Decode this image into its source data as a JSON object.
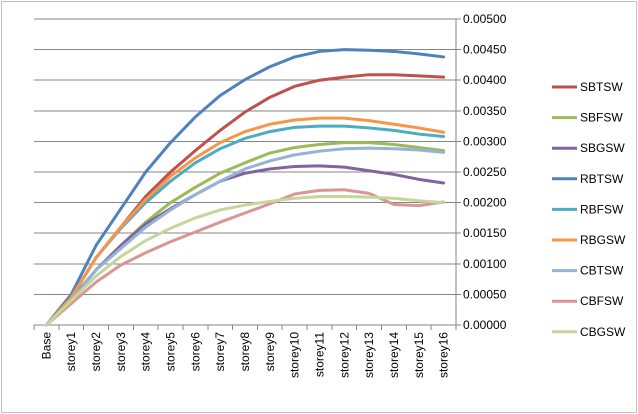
{
  "chart_data": {
    "type": "line",
    "title": "",
    "xlabel": "",
    "ylabel": "",
    "categories": [
      "Base",
      "storey1",
      "storey2",
      "storey3",
      "storey4",
      "storey5",
      "storey6",
      "storey7",
      "storey8",
      "storey9",
      "storey10",
      "storey11",
      "storey12",
      "storey13",
      "storey14",
      "storey15",
      "storey16"
    ],
    "ylim": [
      0,
      0.005
    ],
    "yticks": [
      "0.00000",
      "0.00050",
      "0.00100",
      "0.00150",
      "0.00200",
      "0.00250",
      "0.00300",
      "0.00350",
      "0.00400",
      "0.00450",
      "0.00500"
    ],
    "y_axis_position": "right",
    "grid": true,
    "legend": "right",
    "series": [
      {
        "name": "SBTSW",
        "color": "#c0504d",
        "values": [
          0,
          0.00045,
          0.0011,
          0.0016,
          0.0021,
          0.0025,
          0.00285,
          0.00318,
          0.00348,
          0.00372,
          0.0039,
          0.004,
          0.00405,
          0.00409,
          0.00409,
          0.00407,
          0.00405
        ]
      },
      {
        "name": "SBFSW",
        "color": "#9bbb59",
        "values": [
          0,
          0.00042,
          0.0009,
          0.0013,
          0.00168,
          0.002,
          0.00225,
          0.00248,
          0.00265,
          0.00281,
          0.0029,
          0.00295,
          0.00298,
          0.00298,
          0.00295,
          0.0029,
          0.00285
        ]
      },
      {
        "name": "SBGSW",
        "color": "#8064a2",
        "values": [
          0,
          0.00042,
          0.0009,
          0.0013,
          0.00165,
          0.0019,
          0.00213,
          0.00235,
          0.00248,
          0.00255,
          0.00259,
          0.0026,
          0.00258,
          0.00252,
          0.00246,
          0.00238,
          0.00232
        ]
      },
      {
        "name": "RBTSW",
        "color": "#4f81bd",
        "values": [
          0,
          0.0005,
          0.0013,
          0.0019,
          0.0025,
          0.00298,
          0.0034,
          0.00375,
          0.00401,
          0.00422,
          0.00438,
          0.00447,
          0.0045,
          0.00449,
          0.00447,
          0.00443,
          0.00438
        ]
      },
      {
        "name": "RBFSW",
        "color": "#4bacc6",
        "values": [
          0,
          0.00045,
          0.0011,
          0.00158,
          0.002,
          0.00235,
          0.00265,
          0.00288,
          0.00305,
          0.00316,
          0.00323,
          0.00325,
          0.00325,
          0.00322,
          0.00318,
          0.00312,
          0.00308
        ]
      },
      {
        "name": "RBGSW",
        "color": "#f79646",
        "values": [
          0,
          0.00045,
          0.0011,
          0.0016,
          0.00205,
          0.00243,
          0.00273,
          0.00298,
          0.00316,
          0.00328,
          0.00335,
          0.00338,
          0.00338,
          0.00334,
          0.00328,
          0.00322,
          0.00315
        ]
      },
      {
        "name": "CBTSW",
        "color": "#95b3d7",
        "values": [
          0,
          0.0004,
          0.0009,
          0.00125,
          0.0016,
          0.00188,
          0.00213,
          0.00235,
          0.00255,
          0.00268,
          0.00278,
          0.00284,
          0.00288,
          0.00289,
          0.00288,
          0.00286,
          0.00282
        ]
      },
      {
        "name": "CBFSW",
        "color": "#d99694",
        "values": [
          0,
          0.00035,
          0.0007,
          0.00098,
          0.00118,
          0.00136,
          0.00152,
          0.00168,
          0.00183,
          0.00198,
          0.00214,
          0.0022,
          0.00221,
          0.00215,
          0.00197,
          0.00195,
          0.00201
        ]
      },
      {
        "name": "CBGSW",
        "color": "#c3d69b",
        "values": [
          0,
          0.0004,
          0.0008,
          0.00112,
          0.00138,
          0.00158,
          0.00175,
          0.00188,
          0.00196,
          0.00202,
          0.00207,
          0.0021,
          0.0021,
          0.00209,
          0.00207,
          0.00203,
          0.002
        ]
      }
    ]
  }
}
